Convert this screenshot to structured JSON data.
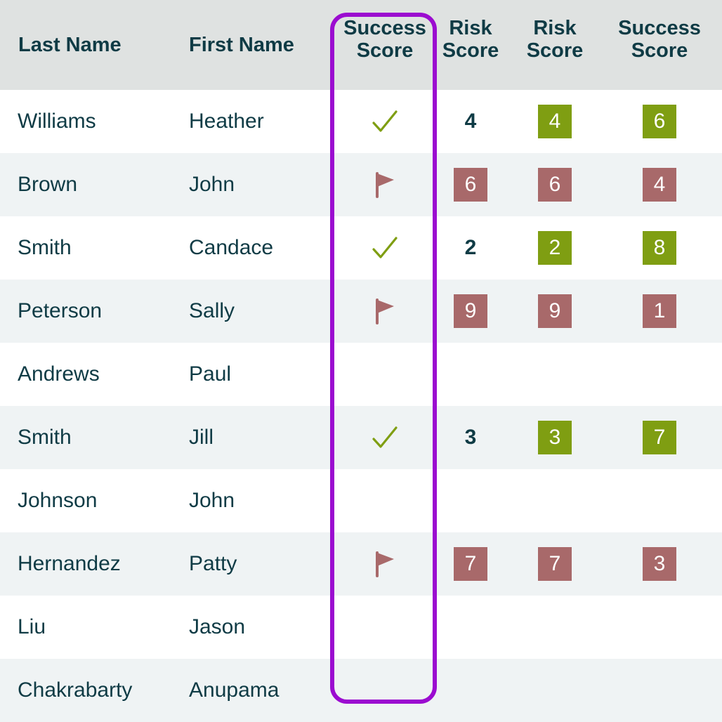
{
  "header": {
    "last_name": "Last Name",
    "first_name": "First Name",
    "col3": [
      "Success",
      "Score"
    ],
    "col4": [
      "Risk",
      "Score"
    ],
    "col5": [
      "Risk",
      "Score"
    ],
    "col6": [
      "Success",
      "Score"
    ]
  },
  "colors": {
    "good": "#7f9e12",
    "bad": "#a8696a",
    "highlight": "#9b0cd0",
    "text": "#0f3b45"
  },
  "rows": [
    {
      "last": "Williams",
      "first": "Heather",
      "status": "check-icon",
      "risk_plain": "4",
      "risk": "4",
      "risk_kind": "good",
      "success": "6",
      "success_kind": "good"
    },
    {
      "last": "Brown",
      "first": "John",
      "status": "flag-icon",
      "risk_plain": "6",
      "risk_plain_kind": "bad",
      "risk": "6",
      "risk_kind": "bad",
      "success": "4",
      "success_kind": "bad"
    },
    {
      "last": "Smith",
      "first": "Candace",
      "status": "check-icon",
      "risk_plain": "2",
      "risk": "2",
      "risk_kind": "good",
      "success": "8",
      "success_kind": "good"
    },
    {
      "last": "Peterson",
      "first": "Sally",
      "status": "flag-icon",
      "risk_plain": "9",
      "risk_plain_kind": "bad",
      "risk": "9",
      "risk_kind": "bad",
      "success": "1",
      "success_kind": "bad"
    },
    {
      "last": "Andrews",
      "first": "Paul"
    },
    {
      "last": "Smith",
      "first": "Jill",
      "status": "check-icon",
      "risk_plain": "3",
      "risk": "3",
      "risk_kind": "good",
      "success": "7",
      "success_kind": "good"
    },
    {
      "last": "Johnson",
      "first": "John"
    },
    {
      "last": "Hernandez",
      "first": "Patty",
      "status": "flag-icon",
      "risk_plain": "7",
      "risk_plain_kind": "bad",
      "risk": "7",
      "risk_kind": "bad",
      "success": "3",
      "success_kind": "bad"
    },
    {
      "last": "Liu",
      "first": "Jason"
    },
    {
      "last": "Chakrabarty",
      "first": "Anupama"
    }
  ]
}
